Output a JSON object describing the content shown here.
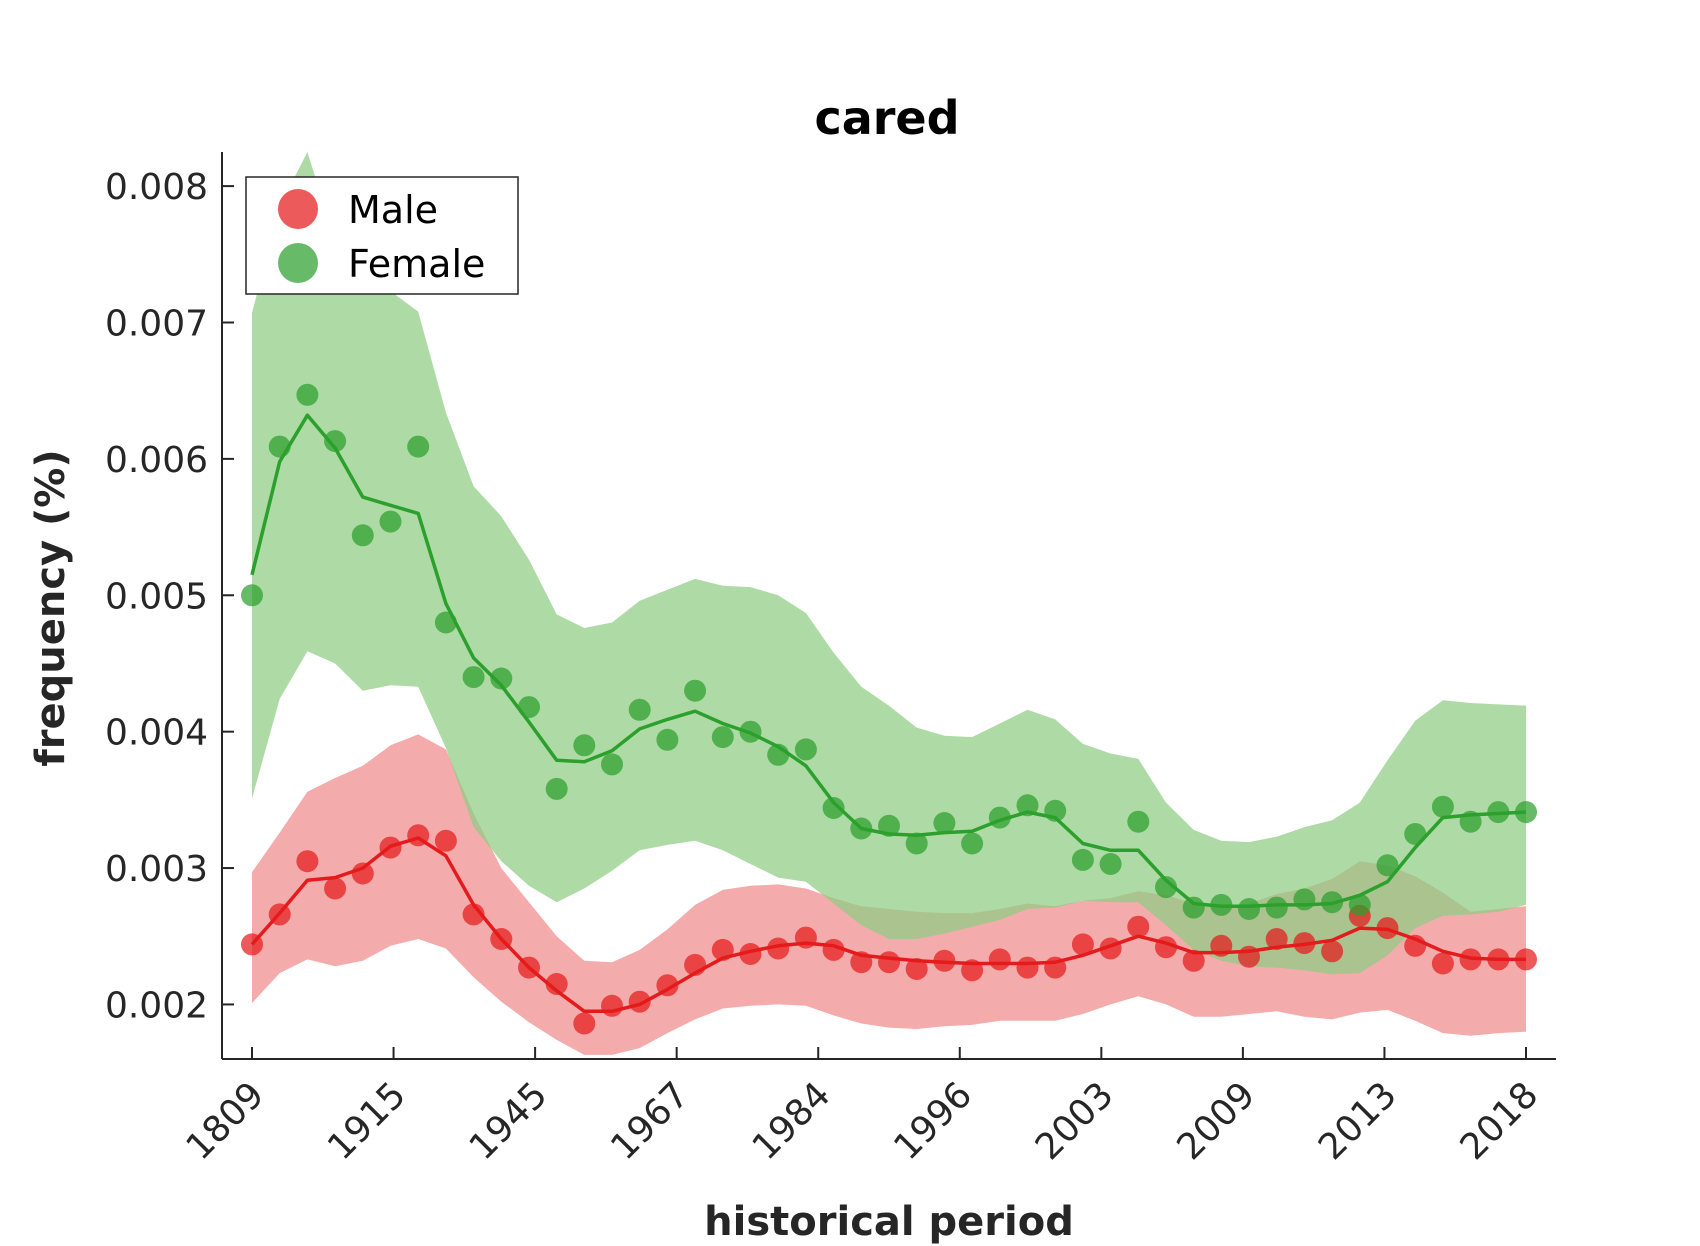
{
  "chart_data": {
    "type": "line",
    "title": "cared",
    "xlabel": "historical period",
    "ylabel": "frequency (%)",
    "ylim": [
      0.0016,
      0.00825
    ],
    "yticks": [
      "0.002",
      "0.003",
      "0.004",
      "0.005",
      "0.006",
      "0.007",
      "0.008"
    ],
    "xtick_labels": [
      "1809",
      "1915",
      "1945",
      "1967",
      "1984",
      "1996",
      "2003",
      "2009",
      "2013",
      "2018"
    ],
    "n_points": 47,
    "legend_position": "top-left",
    "colors": {
      "male": "#e41a1c",
      "female": "#2ca02c",
      "male_band": "#f08a8c",
      "female_band": "#8fcc84"
    },
    "series": [
      {
        "name": "Male",
        "points": [
          0.00244,
          0.00266,
          0.00305,
          0.00285,
          0.00296,
          0.00315,
          0.00324,
          0.0032,
          0.00266,
          0.00248,
          0.00227,
          0.00215,
          0.00186,
          0.00199,
          0.00202,
          0.00214,
          0.00229,
          0.0024,
          0.00237,
          0.00241,
          0.00249,
          0.0024,
          0.00231,
          0.00231,
          0.00226,
          0.00232,
          0.00225,
          0.00233,
          0.00227,
          0.00227,
          0.00244,
          0.00241,
          0.00257,
          0.00242,
          0.00232,
          0.00243,
          0.00235,
          0.00248,
          0.00245,
          0.00239,
          0.00265,
          0.00256,
          0.00243,
          0.0023,
          0.00233,
          0.00233,
          0.00233
        ],
        "line": [
          0.00244,
          0.00267,
          0.00291,
          0.00293,
          0.003,
          0.00316,
          0.00322,
          0.00309,
          0.00273,
          0.00248,
          0.00227,
          0.0021,
          0.00195,
          0.00195,
          0.002,
          0.00211,
          0.00223,
          0.00234,
          0.00239,
          0.00243,
          0.00245,
          0.00243,
          0.00236,
          0.00234,
          0.00232,
          0.00231,
          0.0023,
          0.0023,
          0.0023,
          0.00231,
          0.00236,
          0.00243,
          0.0025,
          0.00245,
          0.00238,
          0.00238,
          0.00239,
          0.00242,
          0.00244,
          0.00247,
          0.00256,
          0.00255,
          0.00248,
          0.00239,
          0.00234,
          0.00233,
          0.00233
        ],
        "band_upper": [
          0.00297,
          0.00326,
          0.00356,
          0.00366,
          0.00375,
          0.0039,
          0.00398,
          0.00387,
          0.0034,
          0.003,
          0.00275,
          0.0025,
          0.00232,
          0.00231,
          0.0024,
          0.00255,
          0.00273,
          0.00284,
          0.00287,
          0.00288,
          0.00285,
          0.00278,
          0.00272,
          0.0027,
          0.00268,
          0.00267,
          0.00267,
          0.0027,
          0.00274,
          0.00272,
          0.00276,
          0.00278,
          0.00283,
          0.0028,
          0.00274,
          0.00272,
          0.00274,
          0.00281,
          0.00285,
          0.00292,
          0.00305,
          0.00302,
          0.00294,
          0.00282,
          0.00268,
          0.0027,
          0.00272
        ],
        "band_lower": [
          0.00201,
          0.00223,
          0.00233,
          0.00228,
          0.00232,
          0.00243,
          0.00248,
          0.00241,
          0.0022,
          0.00202,
          0.00187,
          0.00174,
          0.00163,
          0.00163,
          0.00168,
          0.00179,
          0.00189,
          0.00197,
          0.00199,
          0.002,
          0.00199,
          0.00192,
          0.00186,
          0.00183,
          0.00182,
          0.00184,
          0.00185,
          0.00188,
          0.00188,
          0.00188,
          0.00193,
          0.002,
          0.00206,
          0.002,
          0.00191,
          0.00191,
          0.00193,
          0.00195,
          0.00191,
          0.00189,
          0.00194,
          0.00196,
          0.00188,
          0.00179,
          0.00177,
          0.00179,
          0.0018
        ]
      },
      {
        "name": "Female",
        "points": [
          0.005,
          0.00609,
          0.00647,
          0.00613,
          0.00544,
          0.00554,
          0.00609,
          0.0048,
          0.0044,
          0.00439,
          0.00418,
          0.00358,
          0.0039,
          0.00376,
          0.00416,
          0.00394,
          0.0043,
          0.00396,
          0.004,
          0.00383,
          0.00387,
          0.00344,
          0.00329,
          0.00331,
          0.00318,
          0.00333,
          0.00318,
          0.00337,
          0.00346,
          0.00342,
          0.00306,
          0.00303,
          0.00334,
          0.00286,
          0.00271,
          0.00273,
          0.0027,
          0.00271,
          0.00277,
          0.00275,
          0.00273,
          0.00302,
          0.00325,
          0.00345,
          0.00334,
          0.00341,
          0.00341
        ],
        "line": [
          0.00515,
          0.00598,
          0.00632,
          0.00608,
          0.00572,
          0.00566,
          0.0056,
          0.00494,
          0.00454,
          0.00434,
          0.00407,
          0.00379,
          0.00378,
          0.00386,
          0.00402,
          0.00409,
          0.00415,
          0.00406,
          0.00399,
          0.00389,
          0.00375,
          0.00348,
          0.00329,
          0.00325,
          0.00324,
          0.00326,
          0.00327,
          0.00335,
          0.00341,
          0.00337,
          0.00318,
          0.00313,
          0.00313,
          0.00291,
          0.00274,
          0.00272,
          0.00272,
          0.00273,
          0.00273,
          0.00274,
          0.0028,
          0.0029,
          0.00315,
          0.00337,
          0.00339,
          0.0034,
          0.00341
        ],
        "band_upper": [
          0.00707,
          0.00785,
          0.00825,
          0.0076,
          0.00728,
          0.00723,
          0.00708,
          0.00634,
          0.0058,
          0.00558,
          0.00526,
          0.00486,
          0.00476,
          0.0048,
          0.00496,
          0.00504,
          0.00512,
          0.00507,
          0.00506,
          0.005,
          0.00487,
          0.00458,
          0.00433,
          0.00419,
          0.00403,
          0.00397,
          0.00396,
          0.00406,
          0.00416,
          0.00409,
          0.00391,
          0.00384,
          0.0038,
          0.00348,
          0.00328,
          0.0032,
          0.00319,
          0.00323,
          0.0033,
          0.00335,
          0.00348,
          0.00379,
          0.00408,
          0.00423,
          0.00421,
          0.0042,
          0.00419
        ],
        "band_lower": [
          0.00351,
          0.00424,
          0.00459,
          0.0045,
          0.0043,
          0.00434,
          0.00433,
          0.00388,
          0.0033,
          0.00305,
          0.00287,
          0.00275,
          0.00285,
          0.00298,
          0.00313,
          0.00317,
          0.0032,
          0.00313,
          0.00303,
          0.00293,
          0.0029,
          0.00274,
          0.00258,
          0.00248,
          0.00248,
          0.00252,
          0.00257,
          0.00262,
          0.0027,
          0.00271,
          0.00276,
          0.00275,
          0.00275,
          0.00258,
          0.0024,
          0.00232,
          0.00228,
          0.00227,
          0.00225,
          0.00222,
          0.00223,
          0.00236,
          0.00256,
          0.00265,
          0.00266,
          0.00268,
          0.00273
        ]
      }
    ]
  }
}
